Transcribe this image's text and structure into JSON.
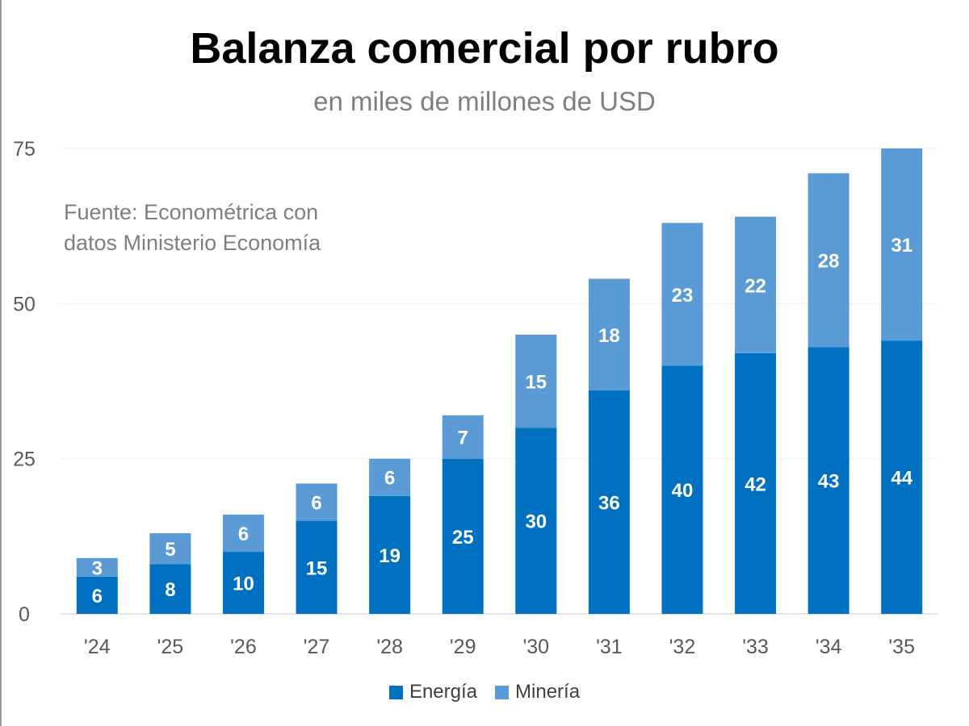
{
  "chart_data": {
    "type": "bar",
    "stacked": true,
    "title": "Balanza comercial por rubro",
    "subtitle": "en miles de millones de USD",
    "annotation": [
      "Fuente: Econométrica con",
      "datos Ministerio Economía"
    ],
    "categories": [
      "'24",
      "'25",
      "'26",
      "'27",
      "'28",
      "'29",
      "'30",
      "'31",
      "'32",
      "'33",
      "'34",
      "'35"
    ],
    "series": [
      {
        "name": "Energía",
        "color": "#0070c0",
        "values": [
          6,
          8,
          10,
          15,
          19,
          25,
          30,
          36,
          40,
          42,
          43,
          44
        ]
      },
      {
        "name": "Minería",
        "color": "#5b9bd5",
        "values": [
          3,
          5,
          6,
          6,
          6,
          7,
          15,
          18,
          23,
          22,
          28,
          31
        ]
      }
    ],
    "ylim": [
      0,
      75
    ],
    "yticks": [
      0,
      25,
      50,
      75
    ],
    "xlabel": "",
    "ylabel": "",
    "grid": true,
    "legend_position": "bottom"
  }
}
